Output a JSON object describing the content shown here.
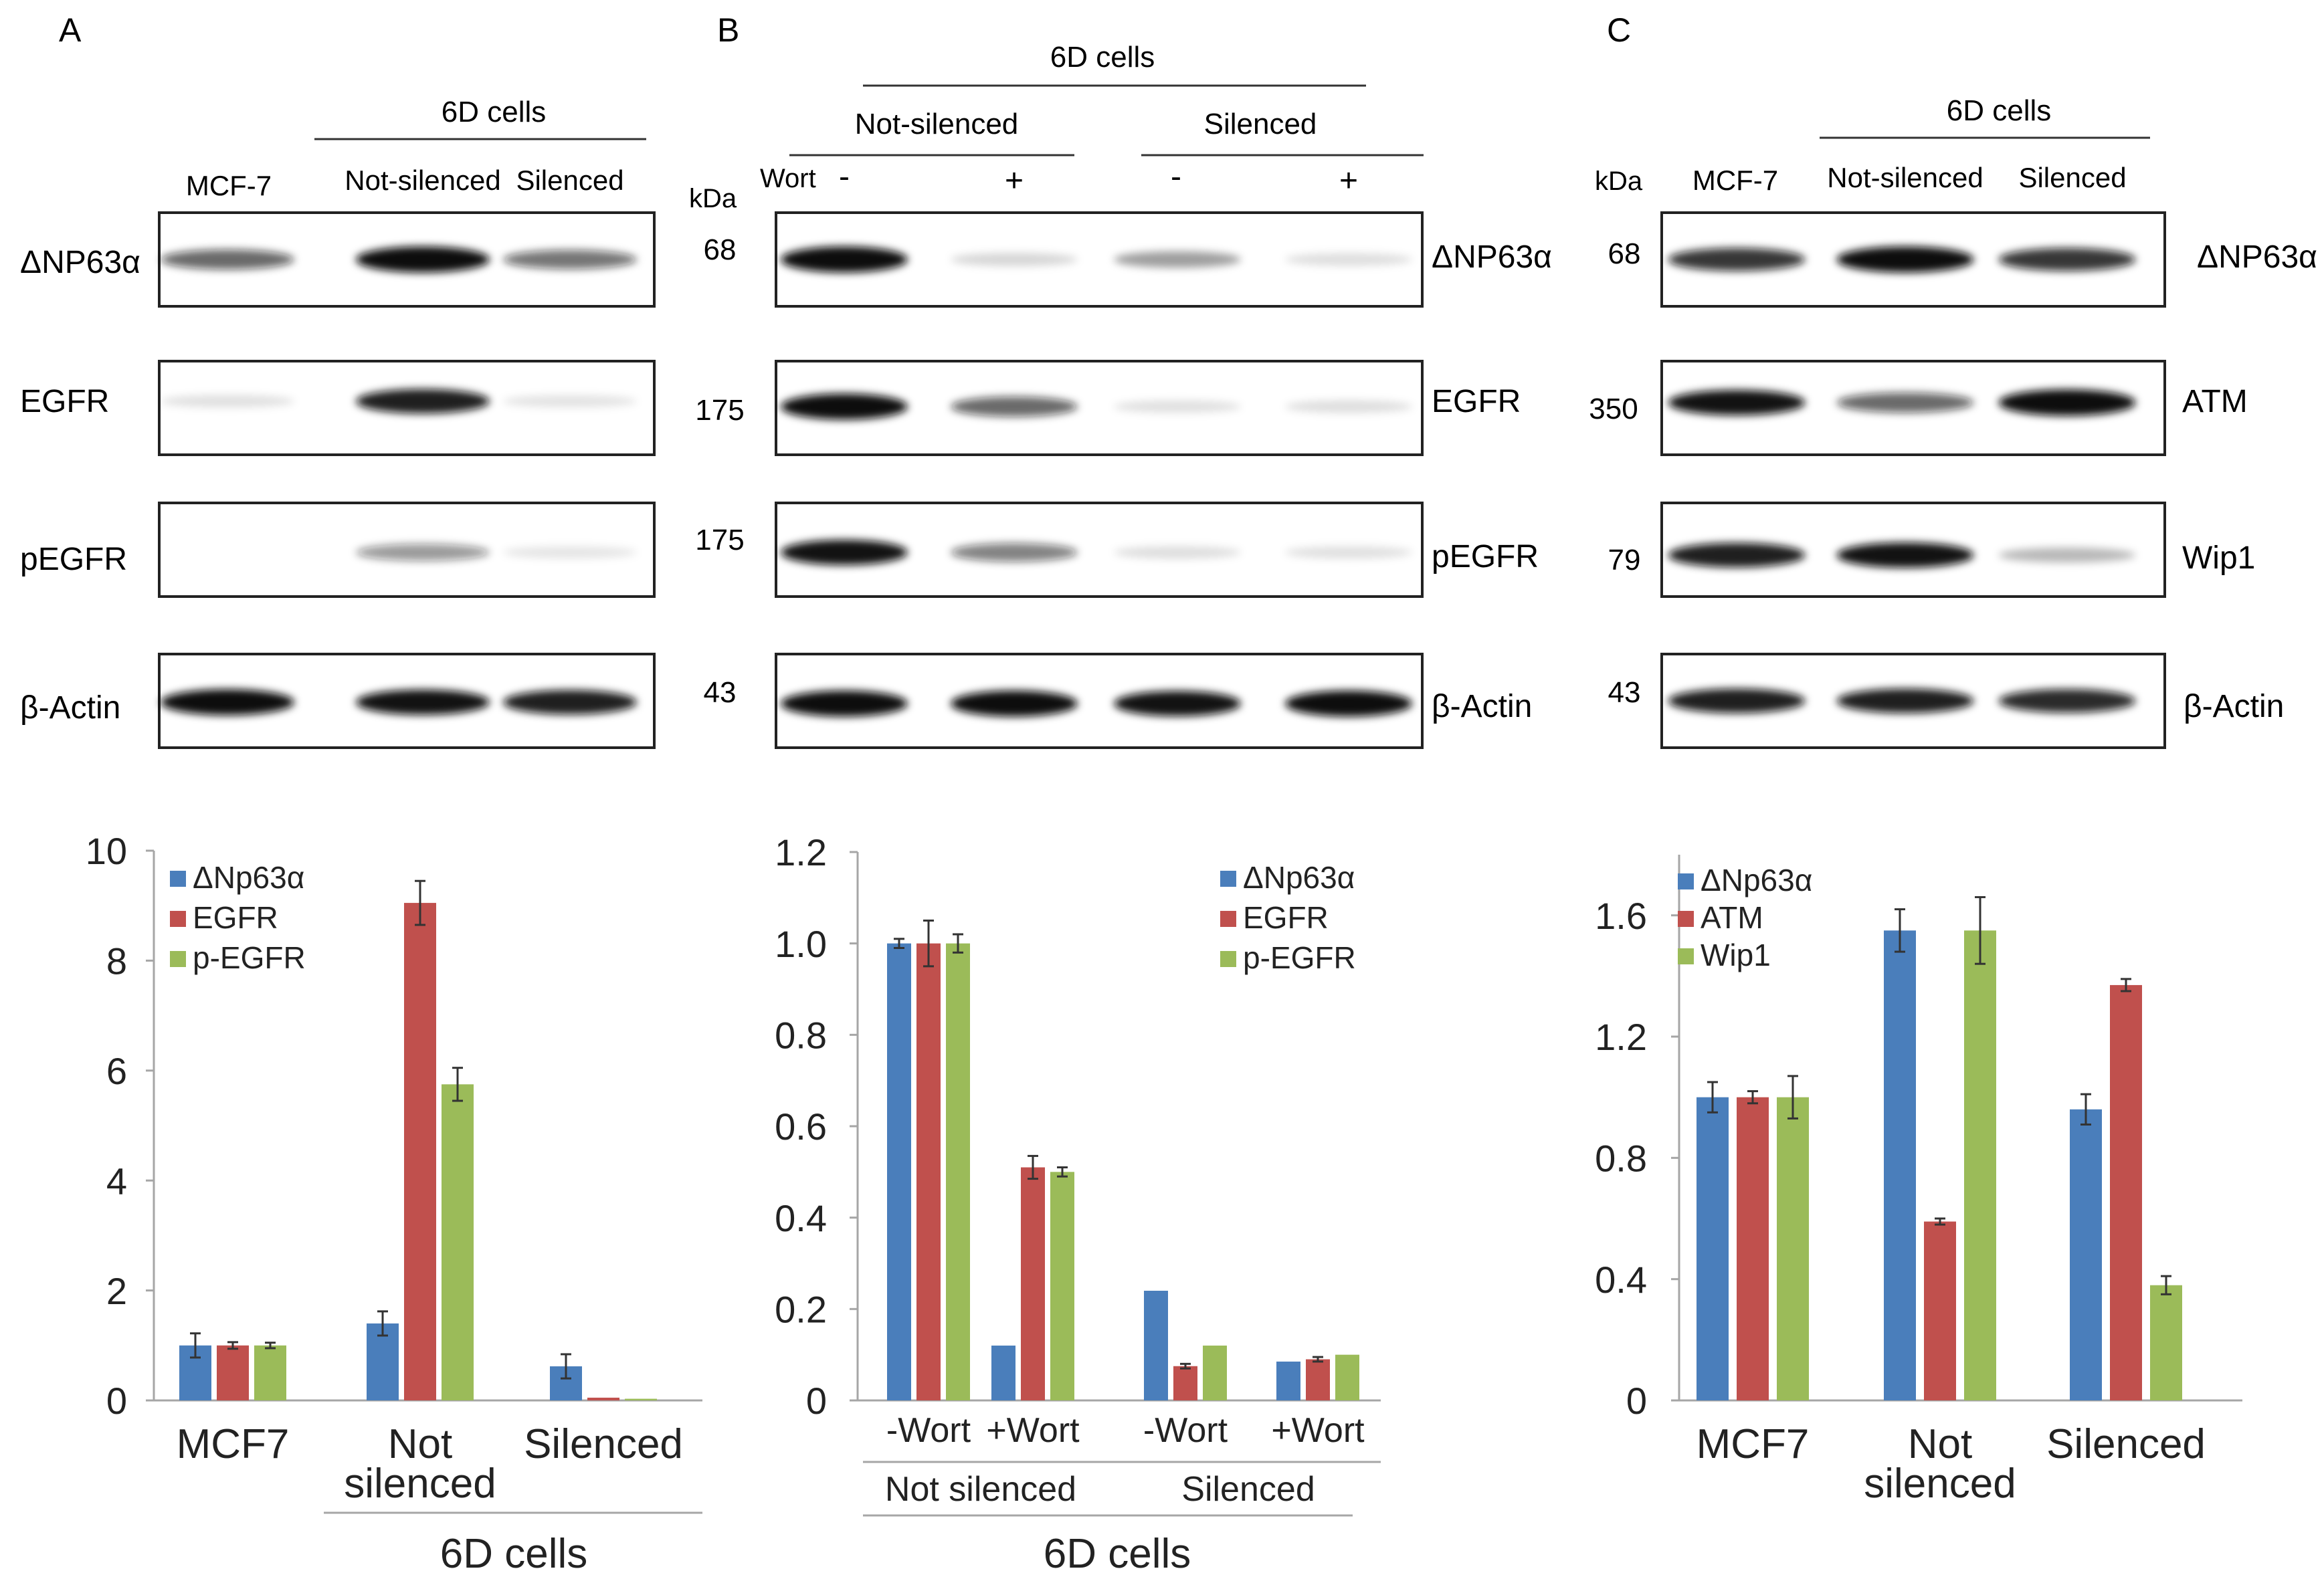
{
  "colors": {
    "series_blue": "#4a7ebb",
    "series_red": "#c0504d",
    "series_green": "#9bbb59",
    "axis": "#a6a6a6",
    "blot_band": "#111111",
    "text": "#222222"
  },
  "panels": [
    {
      "letter": "A",
      "header_group": "6D cells",
      "lane_labels": [
        "MCF-7",
        "Not-silenced",
        "Silenced"
      ],
      "kda_label": "",
      "blots": [
        {
          "label": "ΔNP63α",
          "kda": "",
          "bands": [
            0.55,
            0.95,
            0.5
          ]
        },
        {
          "label": "EGFR",
          "kda": "",
          "bands": [
            0.04,
            0.85,
            0.03
          ]
        },
        {
          "label": "pEGFR",
          "kda": "",
          "bands": [
            0.0,
            0.35,
            0.02
          ]
        },
        {
          "label": "β-Actin",
          "kda": "",
          "bands": [
            0.95,
            0.9,
            0.85
          ]
        }
      ]
    },
    {
      "letter": "B",
      "header_group": "6D cells",
      "subgroups": [
        "Not-silenced",
        "Silenced"
      ],
      "wort_label": "Wort",
      "wort_signs": [
        "-",
        "+",
        "-",
        "+"
      ],
      "kda_label": "kDa",
      "blots": [
        {
          "label": "ΔNP63α",
          "kda": "68",
          "bands": [
            0.95,
            0.08,
            0.3,
            0.05
          ]
        },
        {
          "label": "EGFR",
          "kda": "175",
          "bands": [
            0.95,
            0.55,
            0.04,
            0.05
          ]
        },
        {
          "label": "pEGFR",
          "kda": "175",
          "bands": [
            0.9,
            0.45,
            0.05,
            0.04
          ]
        },
        {
          "label": "β-Actin",
          "kda": "43",
          "bands": [
            0.95,
            0.95,
            0.9,
            0.95
          ]
        }
      ]
    },
    {
      "letter": "C",
      "header_group": "6D cells",
      "lane_labels": [
        "MCF-7",
        "Not-silenced",
        "Silenced"
      ],
      "kda_label": "kDa",
      "blots": [
        {
          "label": "ΔNP63α",
          "kda": "68",
          "bands": [
            0.75,
            0.95,
            0.75
          ]
        },
        {
          "label": "ATM",
          "kda": "350",
          "bands": [
            0.9,
            0.55,
            0.98
          ]
        },
        {
          "label": "Wip1",
          "kda": "79",
          "bands": [
            0.85,
            0.9,
            0.2
          ]
        },
        {
          "label": "β-Actin",
          "kda": "43",
          "bands": [
            0.85,
            0.85,
            0.8
          ]
        }
      ]
    }
  ],
  "chart_data": [
    {
      "type": "bar",
      "categories": [
        "MCF7",
        "Not\nsilenced",
        "Silenced"
      ],
      "group_label": "6D cells",
      "ylim": [
        0,
        10
      ],
      "yticks": [
        0,
        2,
        4,
        6,
        8,
        10
      ],
      "legend": "top-left",
      "series": [
        {
          "name": "ΔNp63α",
          "color": "#4a7ebb",
          "values": [
            1.0,
            1.4,
            0.62
          ],
          "errors": [
            0.22,
            0.22,
            0.22
          ]
        },
        {
          "name": "EGFR",
          "color": "#c0504d",
          "values": [
            1.0,
            9.05,
            0.05
          ],
          "errors": [
            0.06,
            0.4,
            0.0
          ]
        },
        {
          "name": "p-EGFR",
          "color": "#9bbb59",
          "values": [
            1.0,
            5.75,
            0.03
          ],
          "errors": [
            0.05,
            0.3,
            0.0
          ]
        }
      ]
    },
    {
      "type": "bar",
      "categories": [
        "-Wort",
        "+Wort",
        "-Wort",
        "+Wort"
      ],
      "groups": [
        "Not silenced",
        "Silenced"
      ],
      "group_label": "6D cells",
      "ylim": [
        0,
        1.2
      ],
      "yticks": [
        "0",
        "0.2",
        "0.4",
        "0.6",
        "0.8",
        "1.0",
        "1.2"
      ],
      "legend": "top-right",
      "series": [
        {
          "name": "ΔNp63α",
          "color": "#4a7ebb",
          "values": [
            1.0,
            0.12,
            0.24,
            0.085
          ],
          "errors": [
            0.01,
            0.0,
            0.0,
            0.0
          ]
        },
        {
          "name": "EGFR",
          "color": "#c0504d",
          "values": [
            1.0,
            0.51,
            0.075,
            0.09
          ],
          "errors": [
            0.05,
            0.025,
            0.005,
            0.005
          ]
        },
        {
          "name": "p-EGFR",
          "color": "#9bbb59",
          "values": [
            1.0,
            0.5,
            0.12,
            0.1
          ],
          "errors": [
            0.02,
            0.01,
            0.0,
            0.0
          ]
        }
      ]
    },
    {
      "type": "bar",
      "categories": [
        "MCF7",
        "Not\nsilenced",
        "Silenced"
      ],
      "ylim": [
        0,
        1.8
      ],
      "yticks": [
        "0",
        "0.4",
        "0.8",
        "1.2",
        "1.6"
      ],
      "legend": "top-left",
      "series": [
        {
          "name": "ΔNp63α",
          "color": "#4a7ebb",
          "values": [
            1.0,
            1.55,
            0.96
          ],
          "errors": [
            0.05,
            0.07,
            0.05
          ]
        },
        {
          "name": "ATM",
          "color": "#c0504d",
          "values": [
            1.0,
            0.59,
            1.37
          ],
          "errors": [
            0.02,
            0.01,
            0.02
          ]
        },
        {
          "name": "Wip1",
          "color": "#9bbb59",
          "values": [
            1.0,
            1.55,
            0.38
          ],
          "errors": [
            0.07,
            0.11,
            0.03
          ]
        }
      ]
    }
  ]
}
